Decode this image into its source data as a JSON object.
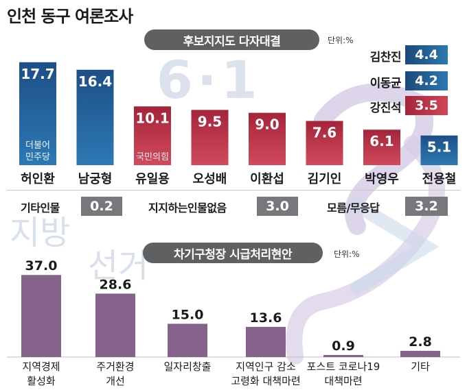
{
  "title": "인천 동구 여론조사",
  "background_text": {
    "big": "6·1",
    "side": [
      "지방",
      "선거"
    ]
  },
  "section1": {
    "pill": "후보지지도 다자대결",
    "unit": "단위:%"
  },
  "section2": {
    "pill": "차기구청장 시급처리현안",
    "unit": "단위:%"
  },
  "other_responses": [
    {
      "label": "기타인물",
      "value": "0.2"
    },
    {
      "label": "지지하는인물없음",
      "value": "3.0"
    },
    {
      "label": "모름/무응답",
      "value": "3.2"
    }
  ],
  "colors": {
    "democratic_blue": "#1c4a7a",
    "ppp_red": "#b3283e",
    "neutral_gray": "#77787b",
    "issue_purple": "#86618c",
    "pill_gray": "#5f6062"
  },
  "chart_data": [
    {
      "type": "bar",
      "title": "후보지지도 다자대결",
      "unit": "단위:%",
      "categories": [
        "허인환",
        "남궁형",
        "유일용",
        "오성배",
        "이환섭",
        "김기인",
        "박영우",
        "전용철"
      ],
      "values": [
        17.7,
        16.4,
        10.1,
        9.5,
        9.0,
        7.6,
        6.1,
        5.1
      ],
      "party_labels": [
        "더불어\n민주당",
        "",
        "국민의힘",
        "",
        "",
        "",
        "",
        ""
      ],
      "bar_colors": [
        "blue",
        "blue",
        "red",
        "red",
        "red",
        "red",
        "red",
        "blue"
      ],
      "ylim": [
        0,
        18.5
      ],
      "grid": false
    },
    {
      "type": "bar",
      "title": "",
      "unit": "",
      "categories": [
        "김찬진",
        "이동균",
        "강진석"
      ],
      "values": [
        4.4,
        4.2,
        3.5
      ],
      "bar_colors": [
        "blue",
        "blue",
        "red"
      ],
      "grid": false
    },
    {
      "type": "bar",
      "title": "차기구청장 시급처리현안",
      "unit": "단위:%",
      "categories": [
        "지역경제\n활성화",
        "주거환경\n개선",
        "일자리창출",
        "지역인구 감소\n고령화 대책마련",
        "포스트 코로나19\n대책마련",
        "기타"
      ],
      "values": [
        37.0,
        28.6,
        15.0,
        13.6,
        0.9,
        2.8
      ],
      "ylim": [
        0,
        38
      ],
      "grid": false
    }
  ]
}
